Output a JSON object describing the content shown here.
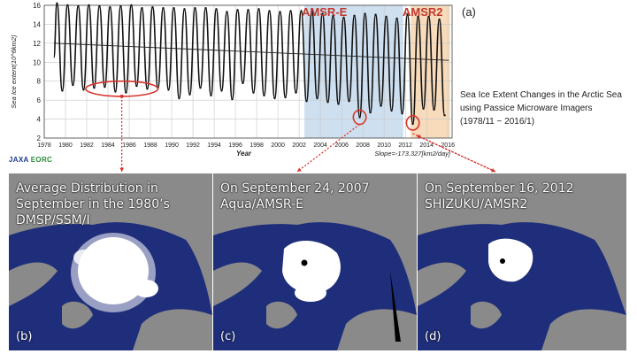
{
  "figure_label": "(a)",
  "caption": {
    "lines": [
      "Sea Ice Extent Changes in the Arctic Sea",
      "using Passice Microware Imagers",
      "(1978/11 ~ 2016/1)"
    ]
  },
  "logo": {
    "primary": "JAXA",
    "secondary": "EORC"
  },
  "colors": {
    "amsre_band": "#c9dbee",
    "amsr2_band": "#f6d7b4",
    "highlight": "#d9342b",
    "ocean": "#1f2e7a",
    "land": "#8a8a8a",
    "ice": "#ffffff"
  },
  "chart_data": {
    "type": "line",
    "title": "",
    "xlabel": "Year",
    "ylabel": "Sea Ice extent(10^6km2)",
    "xlim": [
      1978,
      2016.4
    ],
    "ylim": [
      2,
      16
    ],
    "yticks": [
      2,
      4,
      6,
      8,
      10,
      12,
      14,
      16
    ],
    "xticks": [
      1978,
      1980,
      1982,
      1984,
      1986,
      1988,
      1990,
      1992,
      1994,
      1996,
      1998,
      2000,
      2002,
      2004,
      2006,
      2008,
      2010,
      2012,
      2014,
      2016
    ],
    "grid": true,
    "shaded_periods": [
      {
        "label": "AMSR-E",
        "start": 2002.5,
        "end": 2011.8
      },
      {
        "label": "AMSR2",
        "start": 2012.5,
        "end": 2016.2
      }
    ],
    "slope_annotation": "Slope=-173.327[km2/day]",
    "trend": {
      "start": [
        1978.9,
        12.0
      ],
      "end": [
        2016.1,
        10.2
      ]
    },
    "series": [
      {
        "name": "",
        "x": [
          1979.2,
          1979.7,
          1980.2,
          1980.7,
          1981.2,
          1981.7,
          1982.2,
          1982.7,
          1983.2,
          1983.7,
          1984.2,
          1984.7,
          1985.2,
          1985.7,
          1986.2,
          1986.7,
          1987.2,
          1987.7,
          1988.2,
          1988.7,
          1989.2,
          1989.7,
          1990.2,
          1990.7,
          1991.2,
          1991.7,
          1992.2,
          1992.7,
          1993.2,
          1993.7,
          1994.2,
          1994.7,
          1995.2,
          1995.7,
          1996.2,
          1996.7,
          1997.2,
          1997.7,
          1998.2,
          1998.7,
          1999.2,
          1999.7,
          2000.2,
          2000.7,
          2001.2,
          2001.7,
          2002.2,
          2002.7,
          2003.2,
          2003.7,
          2004.2,
          2004.7,
          2005.2,
          2005.7,
          2006.2,
          2006.7,
          2007.2,
          2007.7,
          2008.2,
          2008.7,
          2009.2,
          2009.7,
          2010.2,
          2010.7,
          2011.2,
          2011.7,
          2012.2,
          2012.7,
          2013.2,
          2013.7,
          2014.2,
          2014.7,
          2015.2,
          2015.7
        ],
        "y": [
          16.2,
          7.0,
          16.0,
          7.6,
          15.9,
          7.1,
          16.0,
          7.3,
          15.9,
          7.4,
          15.8,
          6.9,
          15.9,
          6.8,
          16.0,
          7.5,
          15.7,
          7.2,
          15.8,
          7.3,
          15.7,
          7.1,
          15.7,
          6.2,
          15.6,
          6.6,
          15.7,
          7.3,
          15.7,
          6.5,
          15.6,
          7.0,
          15.3,
          6.1,
          15.5,
          7.8,
          15.5,
          6.8,
          15.6,
          6.5,
          15.4,
          6.2,
          15.3,
          6.3,
          15.4,
          6.8,
          15.4,
          5.9,
          15.4,
          6.2,
          15.1,
          5.8,
          14.9,
          5.6,
          14.7,
          5.9,
          14.9,
          4.2,
          15.1,
          4.7,
          15.0,
          5.4,
          14.8,
          4.9,
          14.6,
          4.6,
          15.0,
          3.5,
          14.8,
          5.1,
          14.8,
          5.0,
          14.5,
          4.4
        ]
      }
    ],
    "ellipses": [
      {
        "name": "1980s-september",
        "cx": 1985.3,
        "cy": 7.2,
        "rx_years": 3.4,
        "ry_values": 0.8
      },
      {
        "name": "2007-minimum",
        "cx": 2007.7,
        "cy": 4.2,
        "rx_years": 0.6,
        "ry_values": 0.75
      },
      {
        "name": "2012-minimum",
        "cx": 2012.7,
        "cy": 3.6,
        "rx_years": 0.6,
        "ry_values": 0.75
      }
    ]
  },
  "maps": [
    {
      "title_lines": [
        "Average Distribution in",
        "September in the 1980’s",
        "DMSP/SSM/I"
      ],
      "letter": "(b)"
    },
    {
      "title_lines": [
        "On September 24, 2007",
        "Aqua/AMSR-E"
      ],
      "letter": "(c)"
    },
    {
      "title_lines": [
        "On September 16, 2012",
        "SHIZUKU/AMSR2"
      ],
      "letter": "(d)"
    }
  ]
}
